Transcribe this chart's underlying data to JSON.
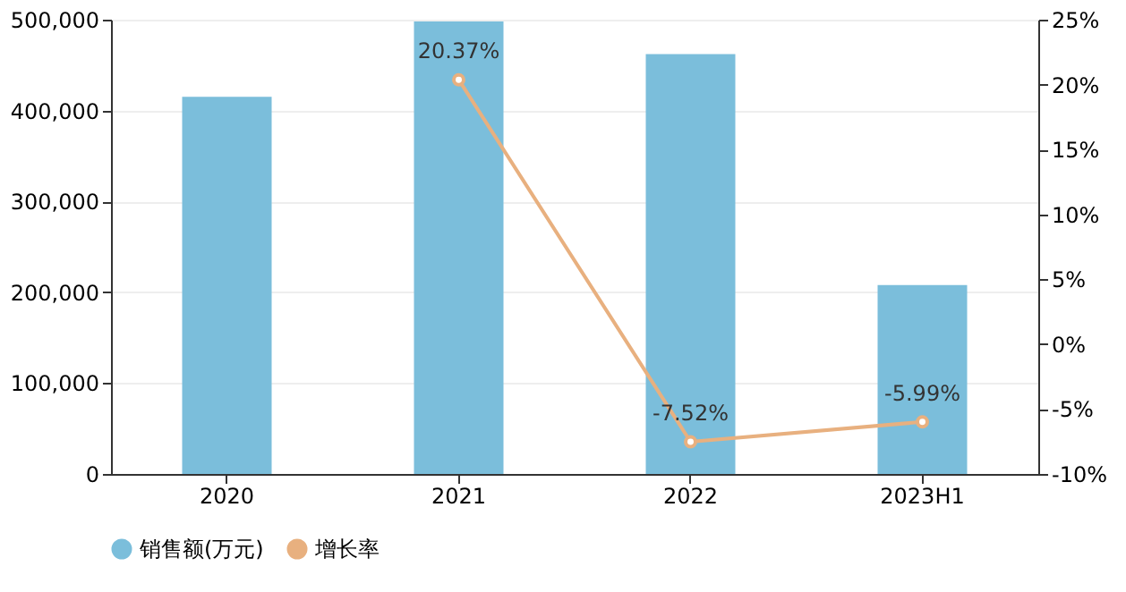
{
  "chart_data": {
    "type": "bar",
    "categories": [
      "2020",
      "2021",
      "2022",
      "2023H1"
    ],
    "series": [
      {
        "name": "销售额(万元)",
        "color": "#7bbedb",
        "values": [
          415000,
          498000,
          462000,
          208000
        ]
      },
      {
        "name": "增长率",
        "type": "line",
        "axis": "y2",
        "color": "#e8b07f",
        "values": [
          null,
          20.37,
          -7.52,
          -5.99
        ],
        "value_labels": [
          null,
          "20.37%",
          "-7.52%",
          "-5.99%"
        ]
      }
    ],
    "ylim": [
      0,
      500000
    ],
    "yticks": [
      0,
      {
        "value": 100000,
        "label": "100,000"
      },
      {
        "value": 200000,
        "label": "200,000"
      },
      {
        "value": 300000,
        "label": "300,000"
      },
      {
        "value": 400000,
        "label": "400,000"
      },
      {
        "value": 500000,
        "label": "500,000"
      }
    ],
    "y2lim": [
      -10,
      25
    ],
    "y2ticks": [
      {
        "value": -10,
        "label": "-10%"
      },
      {
        "value": -5,
        "label": "-5%"
      },
      {
        "value": 0,
        "label": "0%"
      },
      {
        "value": 5,
        "label": "5%"
      },
      {
        "value": 10,
        "label": "10%"
      },
      {
        "value": 15,
        "label": "15%"
      },
      {
        "value": 20,
        "label": "20%"
      },
      {
        "value": 25,
        "label": "25%"
      }
    ],
    "grid": "y",
    "legend": "bottom",
    "marker": "circle",
    "line_style": "solid"
  }
}
